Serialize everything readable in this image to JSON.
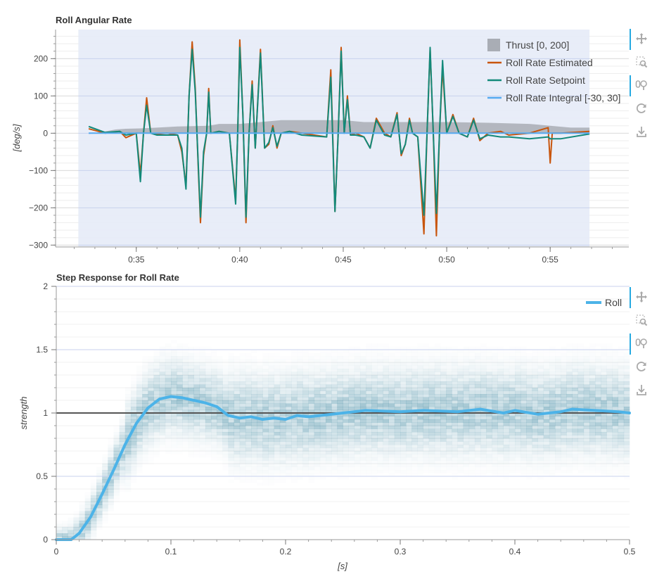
{
  "colors": {
    "estimated": "#c8550d",
    "setpoint": "#13897a",
    "integral": "#56aaf0",
    "thrust": "#a9adb5",
    "plot_band": "#e6ebf7",
    "roll_step": "#4cb3e8",
    "heat": "#2f7f9a",
    "toolbar_active": "#26aae1"
  },
  "toolbar": [
    {
      "name": "pan-icon",
      "active": true
    },
    {
      "name": "box-zoom-icon",
      "active": false
    },
    {
      "name": "wheel-zoom-icon",
      "active": true
    },
    {
      "name": "reset-icon",
      "active": false
    },
    {
      "name": "save-icon",
      "active": false
    }
  ],
  "chart_data": [
    {
      "type": "line",
      "title": "Roll Angular Rate",
      "ylabel": "[deg/s]",
      "xlabel": "",
      "x_tick_labels": [
        "0:35",
        "0:40",
        "0:45",
        "0:50",
        "0:55"
      ],
      "x_ticks": [
        35,
        40,
        45,
        50,
        55
      ],
      "xlim": [
        31.1,
        58.8
      ],
      "ylim": [
        -305,
        278
      ],
      "y_ticks": [
        -300,
        -200,
        -100,
        0,
        100,
        200
      ],
      "y_tick_labels": [
        "−300",
        "−200",
        "−100",
        "0",
        "100",
        "200"
      ],
      "shaded_region": [
        32.2,
        56.9
      ],
      "legend": {
        "placement": "top-right"
      },
      "series": [
        {
          "name": "Thrust [0, 200]",
          "kind": "area",
          "points": [
            [
              32.7,
              -2
            ],
            [
              33.5,
              5
            ],
            [
              34.0,
              10
            ],
            [
              34.5,
              12
            ],
            [
              35.2,
              13
            ],
            [
              36.0,
              15
            ],
            [
              37.0,
              18
            ],
            [
              38.5,
              20
            ],
            [
              39.0,
              25
            ],
            [
              40.0,
              25
            ],
            [
              41.0,
              30
            ],
            [
              42.0,
              35
            ],
            [
              45.0,
              35
            ],
            [
              46.0,
              30
            ],
            [
              48.0,
              30
            ],
            [
              50.0,
              30
            ],
            [
              52.0,
              28
            ],
            [
              54.0,
              25
            ],
            [
              55.0,
              20
            ],
            [
              56.0,
              15
            ],
            [
              56.9,
              15
            ]
          ]
        },
        {
          "name": "Roll Rate Estimated",
          "kind": "line",
          "points": [
            [
              32.7,
              12
            ],
            [
              33.5,
              0
            ],
            [
              34.2,
              5
            ],
            [
              34.5,
              -12
            ],
            [
              35.0,
              0
            ],
            [
              35.2,
              -110
            ],
            [
              35.35,
              0
            ],
            [
              35.5,
              95
            ],
            [
              35.7,
              0
            ],
            [
              36.0,
              -2
            ],
            [
              36.5,
              0
            ],
            [
              37.0,
              -5
            ],
            [
              37.2,
              -50
            ],
            [
              37.4,
              -140
            ],
            [
              37.55,
              100
            ],
            [
              37.7,
              245
            ],
            [
              37.85,
              120
            ],
            [
              38.0,
              -100
            ],
            [
              38.1,
              -240
            ],
            [
              38.25,
              -60
            ],
            [
              38.4,
              0
            ],
            [
              38.5,
              120
            ],
            [
              38.6,
              0
            ],
            [
              39.0,
              5
            ],
            [
              39.5,
              0
            ],
            [
              39.8,
              -180
            ],
            [
              39.9,
              0
            ],
            [
              40.0,
              250
            ],
            [
              40.15,
              50
            ],
            [
              40.3,
              -240
            ],
            [
              40.45,
              0
            ],
            [
              40.6,
              140
            ],
            [
              40.75,
              -40
            ],
            [
              41.0,
              225
            ],
            [
              41.2,
              -40
            ],
            [
              41.4,
              -30
            ],
            [
              41.6,
              20
            ],
            [
              41.8,
              -40
            ],
            [
              42.0,
              0
            ],
            [
              42.4,
              5
            ],
            [
              43.0,
              0
            ],
            [
              44.2,
              -10
            ],
            [
              44.4,
              170
            ],
            [
              44.6,
              -210
            ],
            [
              44.75,
              -10
            ],
            [
              44.9,
              230
            ],
            [
              45.05,
              0
            ],
            [
              45.2,
              100
            ],
            [
              45.35,
              -5
            ],
            [
              45.6,
              0
            ],
            [
              46.0,
              -10
            ],
            [
              46.3,
              -40
            ],
            [
              46.6,
              40
            ],
            [
              47.0,
              0
            ],
            [
              47.3,
              -10
            ],
            [
              47.6,
              55
            ],
            [
              47.8,
              -60
            ],
            [
              48.0,
              -30
            ],
            [
              48.2,
              40
            ],
            [
              48.35,
              0
            ],
            [
              48.6,
              -10
            ],
            [
              48.9,
              -270
            ],
            [
              49.05,
              0
            ],
            [
              49.2,
              225
            ],
            [
              49.35,
              0
            ],
            [
              49.5,
              -275
            ],
            [
              49.65,
              0
            ],
            [
              49.8,
              175
            ],
            [
              50.0,
              0
            ],
            [
              50.3,
              50
            ],
            [
              50.6,
              0
            ],
            [
              51.0,
              -10
            ],
            [
              51.3,
              40
            ],
            [
              51.6,
              -20
            ],
            [
              52.0,
              0
            ],
            [
              52.6,
              5
            ],
            [
              53.0,
              -5
            ],
            [
              54.0,
              0
            ],
            [
              54.9,
              15
            ],
            [
              55.0,
              -80
            ],
            [
              55.1,
              0
            ],
            [
              55.5,
              0
            ],
            [
              56.9,
              5
            ]
          ]
        },
        {
          "name": "Roll Rate Setpoint",
          "kind": "line",
          "points": [
            [
              32.7,
              18
            ],
            [
              33.5,
              2
            ],
            [
              34.2,
              5
            ],
            [
              34.5,
              -5
            ],
            [
              35.0,
              0
            ],
            [
              35.2,
              -130
            ],
            [
              35.35,
              0
            ],
            [
              35.5,
              75
            ],
            [
              35.7,
              0
            ],
            [
              36.0,
              -5
            ],
            [
              36.5,
              -5
            ],
            [
              37.0,
              -5
            ],
            [
              37.2,
              -40
            ],
            [
              37.4,
              -150
            ],
            [
              37.55,
              100
            ],
            [
              37.7,
              225
            ],
            [
              37.85,
              110
            ],
            [
              38.0,
              -90
            ],
            [
              38.1,
              -225
            ],
            [
              38.25,
              -50
            ],
            [
              38.4,
              0
            ],
            [
              38.5,
              110
            ],
            [
              38.6,
              0
            ],
            [
              39.0,
              5
            ],
            [
              39.5,
              0
            ],
            [
              39.8,
              -190
            ],
            [
              39.9,
              0
            ],
            [
              40.0,
              230
            ],
            [
              40.15,
              50
            ],
            [
              40.3,
              -225
            ],
            [
              40.45,
              0
            ],
            [
              40.6,
              130
            ],
            [
              40.75,
              -40
            ],
            [
              41.0,
              215
            ],
            [
              41.2,
              -40
            ],
            [
              41.4,
              -25
            ],
            [
              41.6,
              15
            ],
            [
              41.8,
              -35
            ],
            [
              42.0,
              0
            ],
            [
              42.4,
              5
            ],
            [
              43.0,
              -5
            ],
            [
              44.2,
              -10
            ],
            [
              44.4,
              150
            ],
            [
              44.6,
              -210
            ],
            [
              44.75,
              -10
            ],
            [
              44.9,
              220
            ],
            [
              45.05,
              0
            ],
            [
              45.2,
              90
            ],
            [
              45.35,
              -5
            ],
            [
              45.6,
              -5
            ],
            [
              46.0,
              -10
            ],
            [
              46.3,
              -40
            ],
            [
              46.6,
              35
            ],
            [
              47.0,
              -5
            ],
            [
              47.3,
              -10
            ],
            [
              47.6,
              50
            ],
            [
              47.8,
              -55
            ],
            [
              48.0,
              -30
            ],
            [
              48.2,
              35
            ],
            [
              48.35,
              0
            ],
            [
              48.6,
              -10
            ],
            [
              48.9,
              -220
            ],
            [
              49.05,
              0
            ],
            [
              49.2,
              230
            ],
            [
              49.35,
              0
            ],
            [
              49.5,
              -215
            ],
            [
              49.65,
              0
            ],
            [
              49.8,
              195
            ],
            [
              50.0,
              0
            ],
            [
              50.3,
              45
            ],
            [
              50.6,
              0
            ],
            [
              51.0,
              -10
            ],
            [
              51.3,
              35
            ],
            [
              51.6,
              -15
            ],
            [
              52.0,
              -5
            ],
            [
              52.6,
              -10
            ],
            [
              53.0,
              -10
            ],
            [
              54.0,
              -15
            ],
            [
              54.9,
              -10
            ],
            [
              55.0,
              -15
            ],
            [
              55.5,
              -15
            ],
            [
              56.9,
              -2
            ]
          ]
        },
        {
          "name": "Roll Rate Integral [-30, 30]",
          "kind": "line",
          "points": [
            [
              32.7,
              0
            ],
            [
              56.9,
              0
            ]
          ]
        }
      ]
    },
    {
      "type": "heatmap",
      "title": "Step Response for Roll Rate",
      "xlabel": "[s]",
      "ylabel": "strength",
      "xlim": [
        0,
        0.5
      ],
      "ylim": [
        0,
        2
      ],
      "x_ticks": [
        0,
        0.1,
        0.2,
        0.3,
        0.4,
        0.5
      ],
      "x_tick_labels": [
        "0",
        "0.1",
        "0.2",
        "0.3",
        "0.4",
        "0.5"
      ],
      "y_ticks": [
        0,
        0.5,
        1,
        1.5,
        2
      ],
      "y_tick_labels": [
        "0",
        "0.5",
        "1",
        "1.5",
        "2"
      ],
      "reference_line": 1,
      "legend": {
        "placement": "top-right"
      },
      "series": [
        {
          "name": "Roll",
          "kind": "line",
          "points": [
            [
              0,
              0
            ],
            [
              0.013,
              0
            ],
            [
              0.02,
              0.05
            ],
            [
              0.03,
              0.18
            ],
            [
              0.04,
              0.36
            ],
            [
              0.05,
              0.55
            ],
            [
              0.06,
              0.75
            ],
            [
              0.07,
              0.92
            ],
            [
              0.08,
              1.04
            ],
            [
              0.09,
              1.11
            ],
            [
              0.1,
              1.13
            ],
            [
              0.11,
              1.12
            ],
            [
              0.12,
              1.1
            ],
            [
              0.13,
              1.08
            ],
            [
              0.14,
              1.05
            ],
            [
              0.15,
              0.98
            ],
            [
              0.16,
              0.96
            ],
            [
              0.17,
              0.97
            ],
            [
              0.18,
              0.95
            ],
            [
              0.19,
              0.96
            ],
            [
              0.2,
              0.95
            ],
            [
              0.21,
              0.98
            ],
            [
              0.22,
              0.97
            ],
            [
              0.23,
              0.98
            ],
            [
              0.25,
              1.0
            ],
            [
              0.27,
              1.02
            ],
            [
              0.3,
              1.01
            ],
            [
              0.32,
              1.02
            ],
            [
              0.35,
              1.01
            ],
            [
              0.37,
              1.03
            ],
            [
              0.39,
              1.0
            ],
            [
              0.4,
              1.02
            ],
            [
              0.42,
              0.99
            ],
            [
              0.44,
              1.01
            ],
            [
              0.45,
              1.03
            ],
            [
              0.47,
              1.02
            ],
            [
              0.49,
              1.01
            ],
            [
              0.5,
              1.0
            ]
          ]
        }
      ]
    }
  ]
}
